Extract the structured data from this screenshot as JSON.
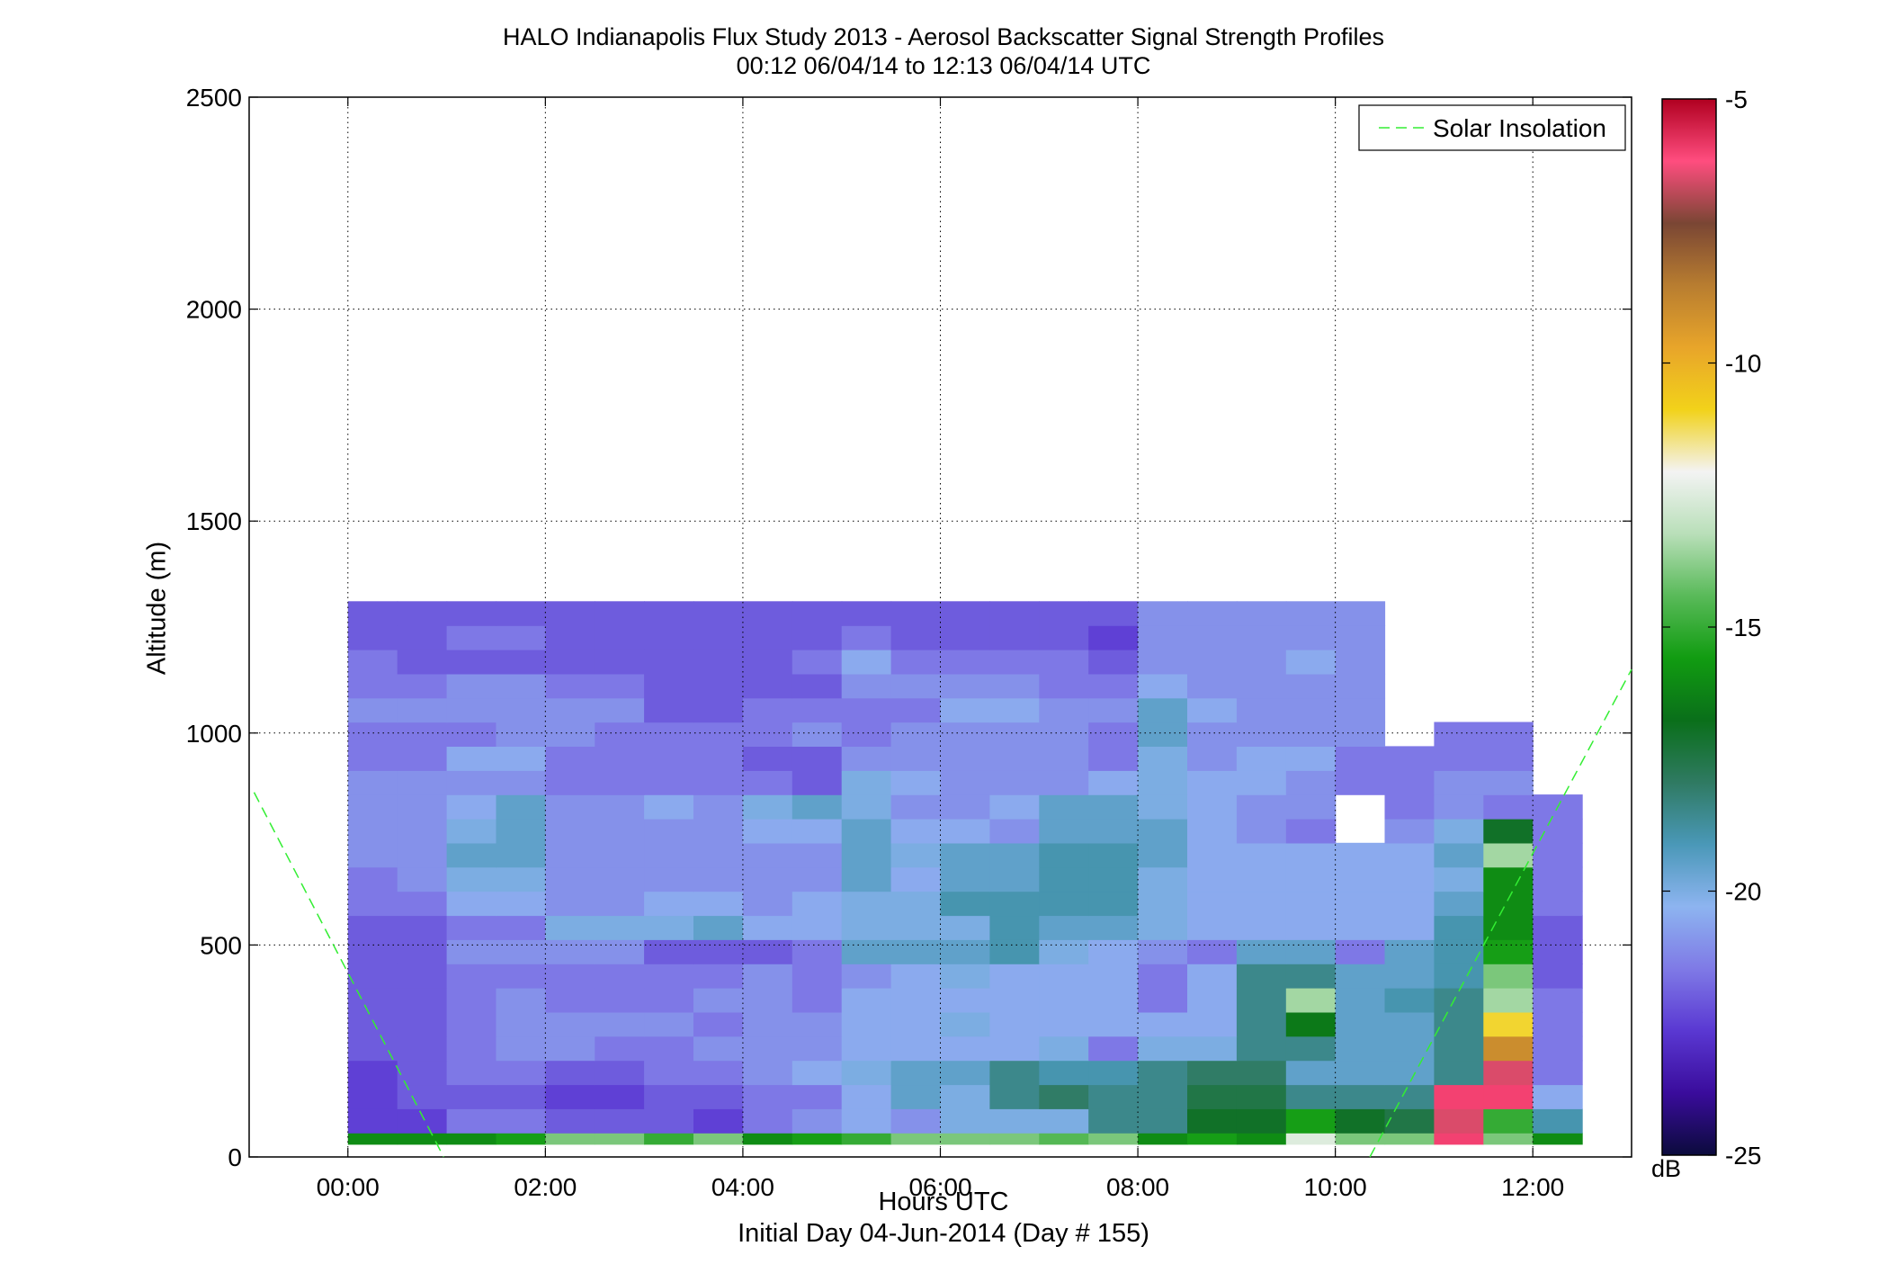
{
  "chart_data": {
    "type": "heatmap",
    "title": "HALO Indianapolis Flux Study 2013 - Aerosol Backscatter Signal Strength Profiles",
    "subtitle": "00:12 06/04/14 to 12:13 06/04/14  UTC",
    "xlabel": "Hours UTC",
    "xlabel_sub": "Initial Day 04-Jun-2014 (Day # 155)",
    "ylabel": "Altitude (m)",
    "x_ticks": [
      0,
      2,
      4,
      6,
      8,
      10,
      12
    ],
    "x_tick_labels": [
      "00:00",
      "02:00",
      "04:00",
      "06:00",
      "08:00",
      "10:00",
      "12:00"
    ],
    "xlim": [
      -1,
      13
    ],
    "y_ticks": [
      0,
      500,
      1000,
      1500,
      2000,
      2500
    ],
    "y_tick_labels": [
      "0",
      "500",
      "1000",
      "1500",
      "2000",
      "2500"
    ],
    "ylim": [
      0,
      2500
    ],
    "grid": true,
    "colorbar": {
      "label": "dB",
      "range": [
        -25,
        -5
      ],
      "ticks": [
        -25,
        -20,
        -15,
        -10,
        -5
      ],
      "tick_labels": [
        "-25",
        "-20",
        "-15",
        "-10",
        "-5"
      ],
      "colors": [
        "#0b0b3c",
        "#3a0c9c",
        "#5a38d2",
        "#7f7ae6",
        "#8db4f0",
        "#4a98b8",
        "#2f7a62",
        "#0a6f1a",
        "#119c11",
        "#59ba59",
        "#b9dfb9",
        "#f3f3f3",
        "#f2d21a",
        "#e8a52a",
        "#b87d30",
        "#7a4634",
        "#ff4d7f",
        "#b00020"
      ]
    },
    "legend": {
      "label": "Solar Insolation",
      "position": "top-right",
      "color": "#33ee33",
      "line_style": "dashed"
    },
    "solar_insolation": {
      "description": "dashed reference curves",
      "segments": [
        {
          "x": [
            -0.95,
            0.97
          ],
          "y": [
            860,
            0
          ]
        },
        {
          "x": [
            10.35,
            13.0
          ],
          "y": [
            0,
            1150
          ]
        }
      ]
    },
    "time_bins_hours": [
      0.25,
      0.75,
      1.25,
      1.75,
      2.25,
      2.75,
      3.25,
      3.75,
      4.25,
      4.75,
      5.25,
      5.75,
      6.25,
      6.75,
      7.25,
      7.75,
      8.25,
      8.75,
      9.25,
      9.75,
      10.25,
      10.75,
      11.25,
      11.75,
      12.25
    ],
    "altitude_bin_m": 57,
    "altitude_bins_m": [
      57,
      114,
      171,
      228,
      285,
      342,
      399,
      456,
      513,
      570,
      627,
      684,
      741,
      798,
      855,
      912,
      969,
      1026,
      1083,
      1140,
      1197,
      1254,
      1311,
      1368,
      1425,
      1482,
      1539,
      1596,
      1653,
      1710,
      1767,
      1824,
      1881,
      1938,
      1995,
      2052,
      2109,
      2166,
      2223,
      2280,
      2337,
      2394,
      2451
    ],
    "db_profiles_note": "rows = altitude bins (low to high), columns = time bins; null = no signal. Altitude bin 0 (ground row) given separately.",
    "surface_row_db": [
      -16,
      -16,
      -16,
      -15.5,
      -14,
      -14,
      -15,
      -14,
      -16,
      -15.5,
      -15,
      -14,
      -14,
      -14,
      -14.5,
      -14,
      -16,
      -15.5,
      -16,
      -12.5,
      -14,
      -14,
      -6,
      -14,
      -16
    ],
    "db_rows": [
      [
        -22.5,
        -22.5,
        -21.5,
        -21.5,
        -22,
        -22,
        -22,
        -22.5,
        -21.5,
        -21,
        -20.5,
        -21,
        -20,
        -20,
        -20,
        -18.5,
        -18.5,
        -17,
        -17,
        -15.5,
        -17,
        -17.5,
        -6.5,
        -15,
        -19
      ],
      [
        -22.5,
        -22,
        -22,
        -22,
        -22.5,
        -22.5,
        -22,
        -22,
        -21.5,
        -21.5,
        -20.5,
        -19.5,
        -20,
        -18.5,
        -18,
        -18.5,
        -18.5,
        -17.5,
        -17.5,
        -18.5,
        -18.5,
        -18.5,
        -6,
        -6,
        -20.5
      ],
      [
        -22.5,
        -22,
        -21.5,
        -21.5,
        -22,
        -22,
        -21.5,
        -21.5,
        -21,
        -20.5,
        -20,
        -19.5,
        -19.5,
        -18.5,
        -19,
        -19,
        -18.5,
        -18,
        -18,
        -19.5,
        -19.5,
        -19.5,
        -18.5,
        -6.5,
        -21.5
      ],
      [
        -22,
        -22,
        -21.5,
        -21,
        -21,
        -21.5,
        -21.5,
        -21,
        -21,
        -21,
        -20.5,
        -20.5,
        -20.5,
        -20.5,
        -20,
        -21.5,
        -20,
        -20,
        -18.5,
        -18.5,
        -19.5,
        -19.5,
        -18.5,
        -9,
        -21.5
      ],
      [
        -22,
        -22,
        -21.5,
        -21,
        -21,
        -21,
        -21,
        -21.5,
        -21,
        -21,
        -20.5,
        -20.5,
        -20,
        -20.5,
        -20.5,
        -20.5,
        -20.5,
        -20.5,
        -18.5,
        -16.5,
        -19.5,
        -19.5,
        -18.5,
        -11,
        -21.5
      ],
      [
        -22,
        -22,
        -21.5,
        -21,
        -21.5,
        -21.5,
        -21.5,
        -21,
        -21,
        -21.5,
        -20.5,
        -20.5,
        -20.5,
        -20.5,
        -20.5,
        -20.5,
        -21.5,
        -20.5,
        -18.5,
        -13.5,
        -19.5,
        -19,
        -18.5,
        -13.5,
        -21.5
      ],
      [
        -22,
        -22,
        -21.5,
        -21.5,
        -21.5,
        -21.5,
        -21.5,
        -21.5,
        -21,
        -21.5,
        -21,
        -20.5,
        -20,
        -20.5,
        -20.5,
        -20.5,
        -21.5,
        -20.5,
        -18.5,
        -18.5,
        -19.5,
        -19.5,
        -19,
        -14,
        -22
      ],
      [
        -22,
        -22,
        -21,
        -21,
        -21,
        -21,
        -22,
        -22,
        -22,
        -21.5,
        -19.5,
        -19.5,
        -19.5,
        -19,
        -20,
        -20.5,
        -21,
        -21.5,
        -19.5,
        -19.5,
        -21.5,
        -19.5,
        -19,
        -15.5,
        -22
      ],
      [
        -22,
        -22,
        -21.5,
        -21.5,
        -20,
        -20,
        -20,
        -19.5,
        -20.5,
        -20.5,
        -20,
        -20,
        -20,
        -19,
        -19.5,
        -19.5,
        -20,
        -20.5,
        -20.5,
        -20.5,
        -20.5,
        -20.5,
        -19,
        -16,
        -22
      ],
      [
        -21.5,
        -21.5,
        -20.5,
        -20.5,
        -21,
        -21,
        -20.5,
        -20.5,
        -21,
        -20.5,
        -20,
        -20,
        -19,
        -19,
        -19,
        -19,
        -20,
        -20.5,
        -20.5,
        -20.5,
        -20.5,
        -20.5,
        -19.5,
        -16,
        -21.5
      ],
      [
        -21.5,
        -21,
        -20,
        -20,
        -21,
        -21,
        -21,
        -21,
        -21,
        -21,
        -19.5,
        -20.5,
        -19.5,
        -19.5,
        -19,
        -19,
        -20,
        -20.5,
        -20.5,
        -20.5,
        -20.5,
        -20.5,
        -20,
        -16,
        -21.5
      ],
      [
        -21,
        -21,
        -19.5,
        -19.5,
        -21,
        -21,
        -21,
        -21,
        -21,
        -21,
        -19.5,
        -20,
        -19.5,
        -19.5,
        -19,
        -19,
        -19.5,
        -20.5,
        -20.5,
        -20.5,
        -20.5,
        -20.5,
        -19.5,
        -13.5,
        -21.5
      ],
      [
        -21,
        -21,
        -20,
        -19.5,
        -21,
        -21,
        -21,
        -21,
        -20.5,
        -20.5,
        -19.5,
        -20.5,
        -20.5,
        -21,
        -19.5,
        -19.5,
        -19.5,
        -20.5,
        -21,
        -21.5,
        null,
        -21,
        -20,
        -17,
        -21.5
      ],
      [
        -21,
        -21,
        -20.5,
        -19.5,
        -21,
        -21,
        -20.5,
        -21,
        -20,
        -19.5,
        -20,
        -21,
        -21,
        -20.5,
        -19.5,
        -19.5,
        -20,
        -20.5,
        -21,
        -21,
        null,
        -21.5,
        -21,
        -21.5,
        -21.5
      ],
      [
        -21,
        -21,
        -21,
        -21,
        -21.5,
        -21.5,
        -21.5,
        -21.5,
        -21.5,
        -22,
        -20,
        -20.5,
        -21,
        -21,
        -21,
        -20.5,
        -20,
        -20.5,
        -20.5,
        -21,
        -21.5,
        -21.5,
        -21,
        -21
      ],
      [
        -21.5,
        -21.5,
        -20.5,
        -20.5,
        -21.5,
        -21.5,
        -21.5,
        -21.5,
        -22,
        -22,
        -21,
        -21,
        -21,
        -21,
        -21,
        -21.5,
        -20,
        -21,
        -20.5,
        -20.5,
        -21.5,
        -21.5,
        -21.5,
        -21.5
      ],
      [
        -21.5,
        -21.5,
        -21.5,
        -21,
        -21,
        -21.5,
        -21.5,
        -21.5,
        -21.5,
        -21,
        -21.5,
        -21,
        -21,
        -21,
        -21,
        -21.5,
        -19.5,
        -21,
        -21,
        -21,
        -21,
        null,
        -21.5,
        -21.5
      ],
      [
        -21,
        -21,
        -21,
        -21,
        -21,
        -21,
        -22,
        -22,
        -21.5,
        -21.5,
        -21.5,
        -21.5,
        -20.5,
        -20.5,
        -21,
        -21,
        -19.5,
        -20.5,
        -21,
        -21,
        -21
      ],
      [
        -21.5,
        -21.5,
        -21,
        -21,
        -21.5,
        -21.5,
        -22,
        -22,
        -22,
        -22,
        -21,
        -21,
        -21,
        -21,
        -21.5,
        -21.5,
        -20.5,
        -21,
        -21,
        -21,
        -21
      ],
      [
        -21.5,
        -22,
        -22,
        -22,
        -22,
        -22,
        -22,
        -22,
        -22,
        -21.5,
        -20.5,
        -21.5,
        -21.5,
        -21.5,
        -21.5,
        -22,
        -21,
        -21,
        -21,
        -20.5,
        -21
      ],
      [
        -22,
        -22,
        -21.5,
        -21.5,
        -22,
        -22,
        -22,
        -22,
        -22,
        -22,
        -21.5,
        -22,
        -22,
        -22,
        -22,
        -22.5,
        -21,
        -21,
        -21,
        -21,
        -21
      ],
      [
        -22,
        -22,
        -22,
        -22,
        -22,
        -22,
        -22,
        -22,
        -22,
        -22,
        -22,
        -22,
        -22,
        -22,
        -22,
        -22,
        -21,
        -21,
        -21,
        -21,
        -21
      ]
    ]
  }
}
